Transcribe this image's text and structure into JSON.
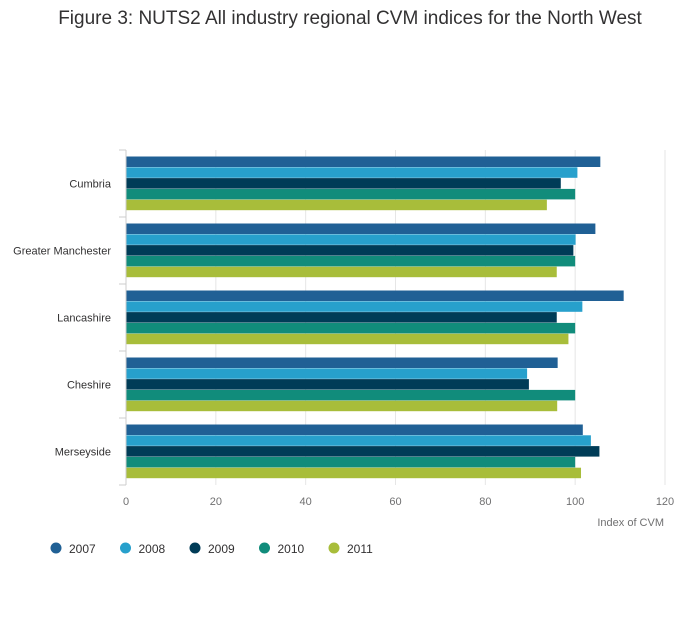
{
  "chart_data": {
    "type": "bar",
    "orientation": "horizontal",
    "title": "Figure 3: NUTS2 All industry regional CVM indices for the North West",
    "xlabel": "Index of CVM",
    "ylabel": "",
    "xlim": [
      0,
      120
    ],
    "xticks": [
      0,
      20,
      40,
      60,
      80,
      100,
      120
    ],
    "grid": true,
    "legend_position": "bottom-left",
    "categories": [
      "Cumbria",
      "Greater Manchester",
      "Lancashire",
      "Cheshire",
      "Merseyside"
    ],
    "series": [
      {
        "name": "2007",
        "color": "#206095",
        "values": [
          105.6,
          104.5,
          110.8,
          96.1,
          101.7
        ]
      },
      {
        "name": "2008",
        "color": "#27a0cc",
        "values": [
          100.5,
          100.1,
          101.6,
          89.3,
          103.5
        ]
      },
      {
        "name": "2009",
        "color": "#003c57",
        "values": [
          96.8,
          99.6,
          95.9,
          89.7,
          105.4
        ]
      },
      {
        "name": "2010",
        "color": "#118c7b",
        "values": [
          100.0,
          100.0,
          100.0,
          100.0,
          100.0
        ]
      },
      {
        "name": "2011",
        "color": "#a8bd3a",
        "values": [
          93.7,
          95.9,
          98.5,
          96.0,
          101.3
        ]
      }
    ]
  }
}
